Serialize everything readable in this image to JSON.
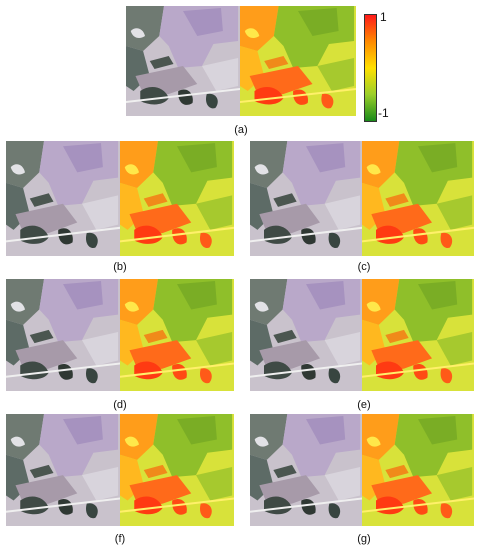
{
  "figure": {
    "captions": {
      "a": "(a)",
      "b": "(b)",
      "c": "(c)",
      "d": "(d)",
      "e": "(e)",
      "f": "(f)",
      "g": "(g)"
    },
    "colorbar": {
      "max_label": "1",
      "min_label": "-1",
      "gradient_colors": [
        "#ff1a1a",
        "#ff8a00",
        "#ffe000",
        "#9bcf2a",
        "#1a8a1a"
      ]
    },
    "panel_types": {
      "left": "false-color composite image",
      "right": "index map (green to red)"
    }
  }
}
